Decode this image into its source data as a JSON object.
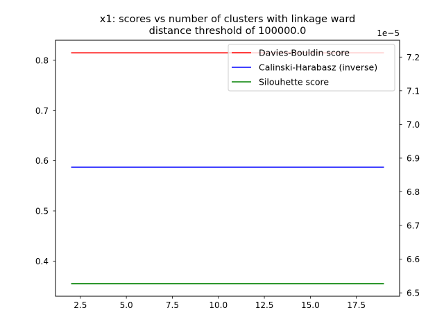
{
  "chart_data": {
    "type": "line",
    "title": "x1: scores vs number of clusters with linkage ward\ndistance threshold of 100000.0",
    "xlabel": "",
    "ylabel": "",
    "xlim": [
      1.15,
      19.85
    ],
    "ylim_left": [
      0.33,
      0.84
    ],
    "ylim_right": [
      6.49,
      7.25
    ],
    "right_axis_offset": "1e−5",
    "x_ticks": [
      2.5,
      5.0,
      7.5,
      10.0,
      12.5,
      15.0,
      17.5
    ],
    "x_tick_labels": [
      "2.5",
      "5.0",
      "7.5",
      "10.0",
      "12.5",
      "15.0",
      "17.5"
    ],
    "y_left_ticks": [
      0.4,
      0.5,
      0.6,
      0.7,
      0.8
    ],
    "y_left_tick_labels": [
      "0.4",
      "0.5",
      "0.6",
      "0.7",
      "0.8"
    ],
    "y_right_ticks": [
      6.5,
      6.6,
      6.7,
      6.8,
      6.9,
      7.0,
      7.1,
      7.2
    ],
    "y_right_tick_labels": [
      "6.5",
      "6.6",
      "6.7",
      "6.8",
      "6.9",
      "7.0",
      "7.1",
      "7.2"
    ],
    "x": [
      2,
      3,
      4,
      5,
      6,
      7,
      8,
      9,
      10,
      11,
      12,
      13,
      14,
      15,
      16,
      17,
      18,
      19
    ],
    "series": [
      {
        "name": "Davies-Bouldin score",
        "axis": "left",
        "color": "#ff0000",
        "values": [
          0.815,
          0.815,
          0.815,
          0.815,
          0.815,
          0.815,
          0.815,
          0.815,
          0.815,
          0.815,
          0.815,
          0.815,
          0.815,
          0.815,
          0.815,
          0.815,
          0.815,
          0.815
        ]
      },
      {
        "name": "Calinski-Harabasz (inverse)",
        "axis": "right",
        "color": "#0000ff",
        "values": [
          6.873,
          6.873,
          6.873,
          6.873,
          6.873,
          6.873,
          6.873,
          6.873,
          6.873,
          6.873,
          6.873,
          6.873,
          6.873,
          6.873,
          6.873,
          6.873,
          6.873,
          6.873
        ]
      },
      {
        "name": "Silouhette score",
        "axis": "left",
        "color": "#008000",
        "values": [
          0.355,
          0.355,
          0.355,
          0.355,
          0.355,
          0.355,
          0.355,
          0.355,
          0.355,
          0.355,
          0.355,
          0.355,
          0.355,
          0.355,
          0.355,
          0.355,
          0.355,
          0.355
        ]
      }
    ],
    "legend_position": "top-right",
    "grid": false
  }
}
